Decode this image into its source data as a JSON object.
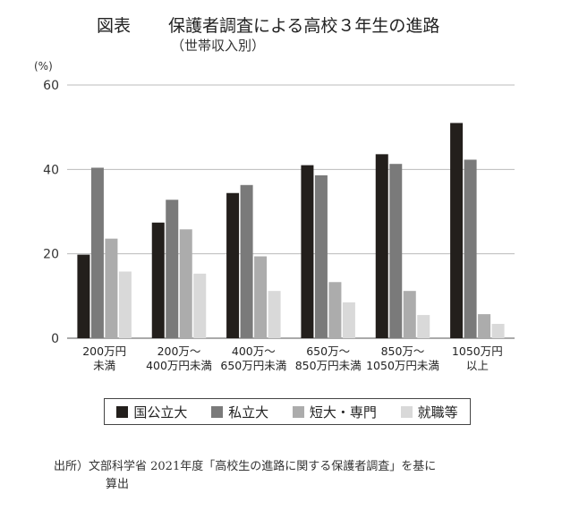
{
  "title_prefix": "図表",
  "title": "保護者調査による高校３年生の進路",
  "subtitle": "（世帯収入別）",
  "source_line1": "出所）文部科学省 2021年度「高校生の進路に関する保護者調査」を基に",
  "source_line2": "算出",
  "chart_data": {
    "type": "bar",
    "title": "保護者調査による高校３年生の進路",
    "subtitle": "（世帯収入別）",
    "unit_label": "(%)",
    "ylim": [
      0,
      60
    ],
    "yticks": [
      0,
      20,
      40,
      60
    ],
    "grid": true,
    "legend_position": "bottom",
    "categories": [
      [
        "200万円",
        "未満"
      ],
      [
        "200万～",
        "400万円未満"
      ],
      [
        "400万～",
        "650万円未満"
      ],
      [
        "650万～",
        "850万円未満"
      ],
      [
        "850万～",
        "1050万円未満"
      ],
      [
        "1050万円",
        "以上"
      ]
    ],
    "series": [
      {
        "name": "国公立大",
        "color": "#231f1c",
        "values": [
          19.8,
          27.4,
          34.4,
          41.0,
          43.6,
          51.0
        ]
      },
      {
        "name": "私立大",
        "color": "#7a7a7a",
        "values": [
          40.4,
          32.8,
          36.3,
          38.6,
          41.3,
          42.3
        ]
      },
      {
        "name": "短大・専門",
        "color": "#acacac",
        "values": [
          23.6,
          25.8,
          19.4,
          13.3,
          11.2,
          5.7
        ]
      },
      {
        "name": "就職等",
        "color": "#d9d9d9",
        "values": [
          15.8,
          15.3,
          11.2,
          8.5,
          5.5,
          3.4
        ]
      }
    ]
  }
}
